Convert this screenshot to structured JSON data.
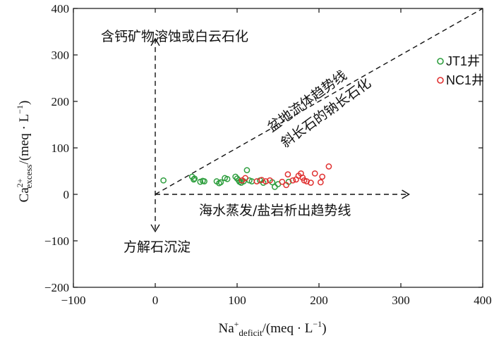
{
  "chart_data": {
    "type": "scatter",
    "title": "",
    "xlabel": "Na⁺deficit/(meq · L⁻¹)",
    "ylabel": "Ca²⁺excess/(meq · L⁻¹)",
    "xlim": [
      -100,
      400
    ],
    "ylim": [
      -200,
      400
    ],
    "xticks": [
      -100,
      0,
      100,
      200,
      300,
      400
    ],
    "yticks": [
      -200,
      -100,
      0,
      100,
      200,
      300,
      400
    ],
    "x_tick_labels": [
      "−100",
      "0",
      "100",
      "200",
      "300",
      "400"
    ],
    "y_tick_labels": [
      "−200",
      "−100",
      "0",
      "100",
      "200",
      "300",
      "400"
    ],
    "grid": false,
    "legend_position": "top-right",
    "series": [
      {
        "name": "JT1井",
        "color": "#2e9e3e",
        "marker": "open-circle",
        "points": [
          [
            10,
            30
          ],
          [
            45,
            38
          ],
          [
            47,
            32
          ],
          [
            48,
            34
          ],
          [
            55,
            27
          ],
          [
            58,
            29
          ],
          [
            60,
            28
          ],
          [
            75,
            28
          ],
          [
            78,
            24
          ],
          [
            80,
            26
          ],
          [
            85,
            35
          ],
          [
            88,
            33
          ],
          [
            98,
            38
          ],
          [
            100,
            34
          ],
          [
            102,
            30
          ],
          [
            103,
            27
          ],
          [
            105,
            25
          ],
          [
            108,
            28
          ],
          [
            112,
            52
          ],
          [
            115,
            30
          ],
          [
            118,
            28
          ],
          [
            128,
            30
          ],
          [
            132,
            25
          ],
          [
            143,
            26
          ],
          [
            146,
            16
          ],
          [
            150,
            22
          ],
          [
            163,
            27
          ]
        ]
      },
      {
        "name": "NC1井",
        "color": "#e03030",
        "marker": "open-circle",
        "points": [
          [
            106,
            30
          ],
          [
            110,
            35
          ],
          [
            124,
            28
          ],
          [
            130,
            31
          ],
          [
            135,
            28
          ],
          [
            140,
            30
          ],
          [
            155,
            27
          ],
          [
            160,
            20
          ],
          [
            162,
            43
          ],
          [
            168,
            30
          ],
          [
            172,
            32
          ],
          [
            175,
            40
          ],
          [
            178,
            45
          ],
          [
            180,
            36
          ],
          [
            182,
            30
          ],
          [
            185,
            28
          ],
          [
            190,
            25
          ],
          [
            195,
            45
          ],
          [
            202,
            26
          ],
          [
            204,
            38
          ],
          [
            212,
            60
          ]
        ]
      }
    ],
    "annotations": {
      "up": "含钙矿物溶蚀或白云石化",
      "down": "方解石沉淀",
      "right": "海水蒸发/盐岩析出趋势线",
      "diag_upper": "盆地流体趋势线",
      "diag_lower": "斜长石的钠长石化"
    },
    "trend_lines": {
      "vertical_arrow": {
        "x": 0,
        "y_from": -80,
        "y_to": 335
      },
      "horizontal_arrow": {
        "y": 0,
        "x_from": 0,
        "x_to": 310
      },
      "diagonal_dashed": {
        "from": [
          0,
          0
        ],
        "to": [
          400,
          400
        ]
      }
    }
  }
}
